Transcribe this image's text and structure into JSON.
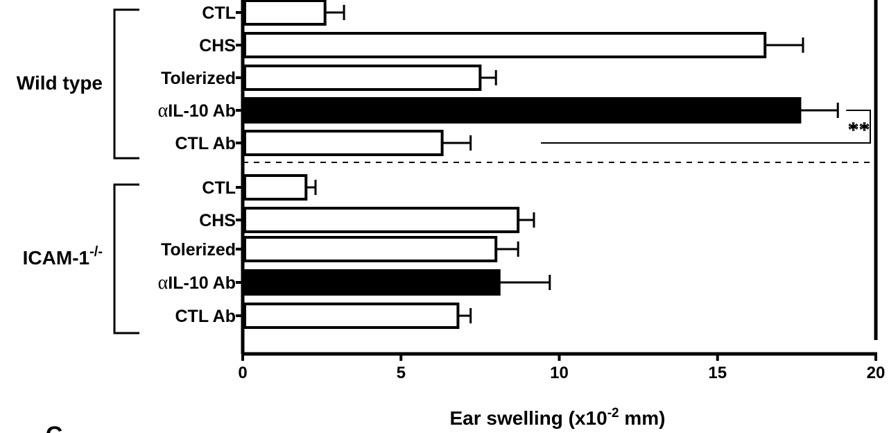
{
  "chart_data": {
    "type": "bar",
    "orientation": "horizontal",
    "xlabel": "Ear swelling (x10",
    "xlabel_exp": "-2",
    "xlabel_unit": " mm)",
    "xlim": [
      0,
      20
    ],
    "xticks": [
      "0",
      "5",
      "10",
      "15",
      "20"
    ],
    "xtick_values": [
      0,
      5,
      10,
      15,
      20
    ],
    "panel_letter": "C",
    "groups": [
      {
        "name": "Wild type",
        "name_sup": "",
        "bars": [
          {
            "label_prefix": "",
            "label": "CTL",
            "value": 2.6,
            "error": 0.6,
            "fill": "#ffffff"
          },
          {
            "label_prefix": "",
            "label": "CHS",
            "value": 16.5,
            "error": 1.2,
            "fill": "#ffffff"
          },
          {
            "label_prefix": "",
            "label": "Tolerized",
            "value": 7.5,
            "error": 0.5,
            "fill": "#ffffff"
          },
          {
            "label_prefix": "α",
            "label": "IL-10 Ab",
            "value": 17.6,
            "error": 1.2,
            "fill": "#000000"
          },
          {
            "label_prefix": "",
            "label": "CTL Ab",
            "value": 6.3,
            "error": 0.9,
            "fill": "#ffffff"
          }
        ]
      },
      {
        "name": "ICAM-1",
        "name_sup": "-/-",
        "bars": [
          {
            "label_prefix": "",
            "label": "CTL",
            "value": 2.0,
            "error": 0.3,
            "fill": "#ffffff"
          },
          {
            "label_prefix": "",
            "label": "CHS",
            "value": 8.7,
            "error": 0.5,
            "fill": "#ffffff"
          },
          {
            "label_prefix": "",
            "label": "Tolerized",
            "value": 8.0,
            "error": 0.7,
            "fill": "#ffffff"
          },
          {
            "label_prefix": "α",
            "label": "IL-10 Ab",
            "value": 8.1,
            "error": 1.6,
            "fill": "#000000"
          },
          {
            "label_prefix": "",
            "label": "CTL Ab",
            "value": 6.8,
            "error": 0.4,
            "fill": "#ffffff"
          }
        ]
      }
    ],
    "significance": {
      "label": "**",
      "between": [
        "Wild type: αIL-10 Ab",
        "Wild type: CTL Ab"
      ]
    },
    "group_separator": "dashed",
    "grid": false
  }
}
